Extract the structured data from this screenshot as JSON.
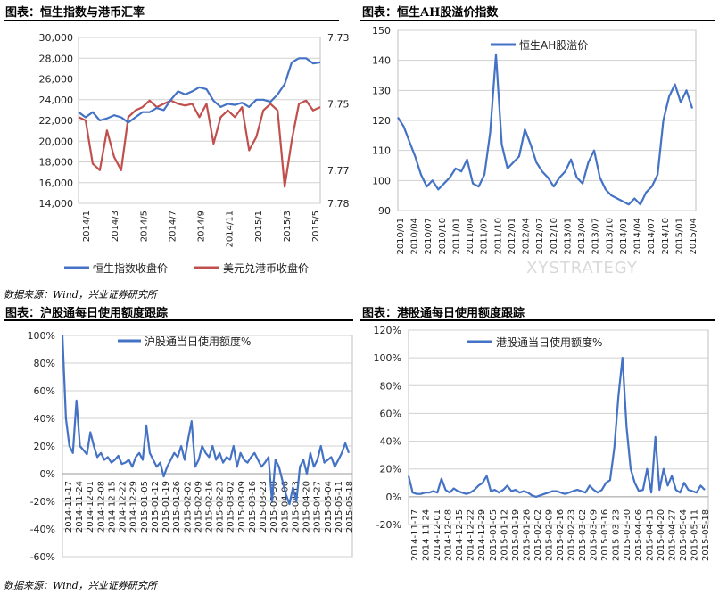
{
  "panels": {
    "p1_title": "图表：恒生指数与港币汇率",
    "p2_title": "图表：恒生AH股溢价指数",
    "p3_title": "图表：沪股通每日使用额度跟踪",
    "p4_title": "图表：港股通每日使用额度跟踪",
    "source_top": "数据来源：Wind，兴业证券研究所",
    "source_bottom": "数据来源：Wind，兴业证券研究所",
    "watermark": "XYSTRATEGY"
  },
  "colors": {
    "blue": "#4472c4",
    "red": "#c0504d"
  },
  "chart_data": [
    {
      "type": "line",
      "x_ticks": [
        "2014/1",
        "2014/3",
        "2014/5",
        "2014/7",
        "2014/9",
        "2014/11",
        "2015/1",
        "2015/3",
        "2015/5"
      ],
      "y_left_ticks": [
        "30,000",
        "28,000",
        "26,000",
        "24,000",
        "22,000",
        "20,000",
        "18,000",
        "16,000",
        "14,000"
      ],
      "y_right_ticks": [
        "7.73",
        "7.75",
        "7.77",
        "7.78"
      ],
      "ylim_left": [
        14000,
        30000
      ],
      "ylim_right_inverted": [
        7.73,
        7.78
      ],
      "series": [
        {
          "name": "恒生指数收盘价",
          "axis": "left",
          "values": [
            22800,
            22300,
            22800,
            22000,
            22200,
            22500,
            22300,
            21800,
            22300,
            22800,
            22800,
            23200,
            23000,
            24000,
            24800,
            24500,
            24800,
            25200,
            25000,
            23900,
            23300,
            23600,
            23500,
            23700,
            23300,
            24000,
            24000,
            23800,
            24500,
            25500,
            27600,
            28000,
            28000,
            27500,
            27600
          ]
        },
        {
          "name": "美元兑港币收盘价",
          "axis": "right",
          "values": [
            7.754,
            7.755,
            7.768,
            7.77,
            7.758,
            7.766,
            7.77,
            7.754,
            7.752,
            7.751,
            7.749,
            7.751,
            7.75,
            7.749,
            7.75,
            7.7505,
            7.75,
            7.754,
            7.75,
            7.762,
            7.754,
            7.752,
            7.754,
            7.751,
            7.764,
            7.76,
            7.752,
            7.75,
            7.752,
            7.775,
            7.761,
            7.75,
            7.749,
            7.752,
            7.751
          ]
        }
      ]
    },
    {
      "type": "line",
      "x_ticks": [
        "2010/01",
        "2010/04",
        "2010/07",
        "2010/10",
        "2011/01",
        "2011/04",
        "2011/07",
        "2011/10",
        "2012/01",
        "2012/04",
        "2012/07",
        "2012/10",
        "2013/01",
        "2013/04",
        "2013/07",
        "2013/10",
        "2014/01",
        "2014/04",
        "2014/07",
        "2014/10",
        "2015/01",
        "2015/04"
      ],
      "y_ticks": [
        "150",
        "140",
        "130",
        "120",
        "110",
        "100",
        "90"
      ],
      "ylim": [
        90,
        150
      ],
      "series": [
        {
          "name": "恒生AH股溢价",
          "values": [
            121,
            118,
            113,
            108,
            102,
            98,
            100,
            97,
            99,
            101,
            104,
            103,
            107,
            99,
            98,
            102,
            116,
            142,
            112,
            104,
            106,
            108,
            117,
            112,
            106,
            103,
            101,
            98,
            101,
            103,
            107,
            101,
            99,
            106,
            110,
            101,
            97,
            95,
            94,
            93,
            92,
            94,
            92,
            96,
            98,
            102,
            120,
            128,
            132,
            126,
            130,
            124
          ]
        }
      ]
    },
    {
      "type": "line",
      "x_ticks": [
        "2014-11-17",
        "2014-11-24",
        "2014-12-01",
        "2014-12-08",
        "2014-12-15",
        "2014-12-22",
        "2014-12-29",
        "2015-01-05",
        "2015-01-12",
        "2015-01-19",
        "2015-01-26",
        "2015-02-02",
        "2015-02-09",
        "2015-02-16",
        "2015-02-23",
        "2015-03-02",
        "2015-03-09",
        "2015-03-16",
        "2015-03-23",
        "2015-03-30",
        "2015-04-06",
        "2015-04-13",
        "2015-04-20",
        "2015-04-27",
        "2015-05-04",
        "2015-05-11",
        "2015-05-18"
      ],
      "y_ticks": [
        "100%",
        "80%",
        "60%",
        "40%",
        "20%",
        "0%",
        "-20%",
        "-40%",
        "-60%"
      ],
      "ylim": [
        -60,
        100
      ],
      "series": [
        {
          "name": "沪股通当日使用额度%",
          "values": [
            100,
            40,
            20,
            15,
            53,
            20,
            17,
            14,
            30,
            20,
            12,
            15,
            10,
            12,
            8,
            10,
            13,
            7,
            8,
            10,
            5,
            12,
            15,
            10,
            35,
            15,
            10,
            5,
            8,
            -2,
            5,
            10,
            15,
            12,
            20,
            10,
            25,
            38,
            5,
            10,
            20,
            15,
            12,
            20,
            10,
            15,
            8,
            12,
            10,
            20,
            5,
            15,
            10,
            8,
            12,
            15,
            10,
            5,
            8,
            12,
            -20,
            10,
            5,
            -5,
            -15,
            -22,
            -10,
            -20,
            5,
            10,
            0,
            15,
            5,
            10,
            20,
            8,
            10,
            12,
            5,
            10,
            15,
            22,
            15
          ]
        }
      ]
    },
    {
      "type": "line",
      "x_ticks": [
        "2014-11-17",
        "2014-11-24",
        "2014-12-01",
        "2014-12-08",
        "2014-12-15",
        "2014-12-22",
        "2014-12-29",
        "2015-01-05",
        "2015-01-12",
        "2015-01-19",
        "2015-01-26",
        "2015-02-02",
        "2015-02-09",
        "2015-02-16",
        "2015-02-23",
        "2015-03-02",
        "2015-03-09",
        "2015-03-16",
        "2015-03-23",
        "2015-03-30",
        "2015-04-06",
        "2015-04-13",
        "2015-04-20",
        "2015-04-27",
        "2015-05-04",
        "2015-05-11",
        "2015-05-18"
      ],
      "y_ticks": [
        "120%",
        "100%",
        "80%",
        "60%",
        "40%",
        "20%",
        "0%",
        "-20%"
      ],
      "ylim": [
        -20,
        120
      ],
      "series": [
        {
          "name": "港股通当日使用额度%",
          "values": [
            15,
            3,
            2,
            2,
            3,
            3,
            4,
            3,
            13,
            5,
            3,
            6,
            4,
            3,
            2,
            3,
            5,
            8,
            10,
            15,
            4,
            5,
            3,
            5,
            8,
            4,
            5,
            3,
            4,
            3,
            1,
            0,
            1,
            2,
            3,
            4,
            4,
            3,
            2,
            3,
            4,
            5,
            4,
            3,
            8,
            5,
            3,
            5,
            10,
            12,
            35,
            72,
            100,
            50,
            20,
            10,
            4,
            5,
            20,
            3,
            43,
            5,
            20,
            8,
            15,
            5,
            3,
            10,
            5,
            4,
            3,
            8,
            5
          ]
        }
      ]
    }
  ]
}
